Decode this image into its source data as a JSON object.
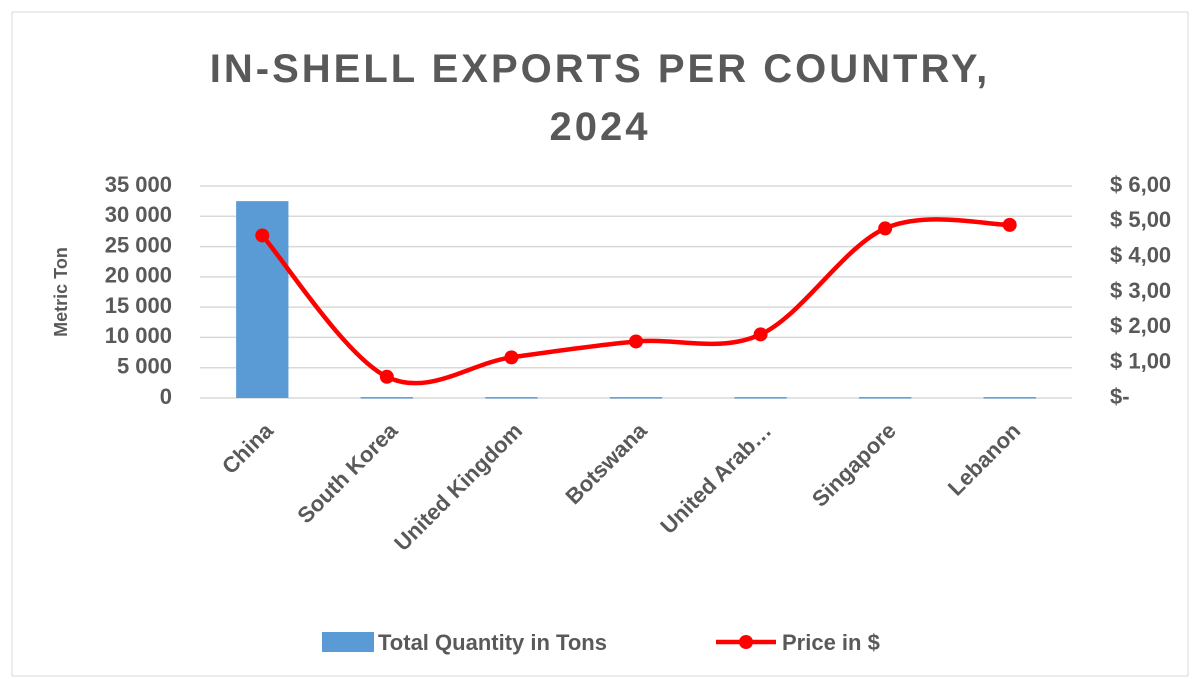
{
  "chart_data": {
    "type": "bar_line",
    "title": "IN-SHELL EXPORTS PER COUNTRY, 2024",
    "y_label": "Metric Ton",
    "categories": [
      "China",
      "South Korea",
      "United Kingdom",
      "Botswana",
      "United Arab…",
      "Singapore",
      "Lebanon"
    ],
    "series": [
      {
        "name": "Total Quantity in Tons",
        "color": "#5b9bd5",
        "kind": "bar",
        "values": [
          32500,
          150,
          150,
          150,
          150,
          150,
          150
        ]
      },
      {
        "name": "Price in $",
        "color": "#ff0000",
        "kind": "line",
        "axis": "y2",
        "smooth": true,
        "values": [
          4.6,
          0.6,
          1.15,
          1.6,
          1.8,
          4.8,
          4.9
        ]
      }
    ],
    "ylim": [
      0,
      35000
    ],
    "yticks": [
      0,
      {
        "value": 5000,
        "label": "5 000"
      },
      {
        "value": 10000,
        "label": "10 000"
      },
      {
        "value": 15000,
        "label": "15 000"
      },
      {
        "value": 20000,
        "label": "20 000"
      },
      {
        "value": 25000,
        "label": "25 000"
      },
      {
        "value": 30000,
        "label": "30 000"
      },
      {
        "value": 35000,
        "label": "35 000"
      }
    ],
    "y2lim": [
      0,
      6
    ],
    "y2ticks": [
      {
        "value": 0,
        "label": "$-"
      },
      {
        "value": 1,
        "label": "$ 1,00"
      },
      {
        "value": 2,
        "label": "$ 2,00"
      },
      {
        "value": 3,
        "label": "$ 3,00"
      },
      {
        "value": 4,
        "label": "$ 4,00"
      },
      {
        "value": 5,
        "label": "$ 5,00"
      },
      {
        "value": 6,
        "label": "$ 6,00"
      }
    ],
    "grid": true,
    "legend": "bottom"
  }
}
